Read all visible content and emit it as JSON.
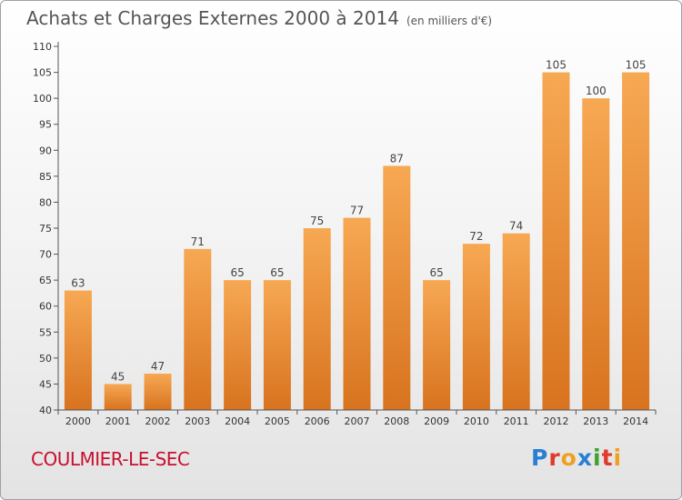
{
  "title": "Achats et Charges Externes 2000 à 2014",
  "unit": "(en milliers d'€)",
  "commune": "COULMIER-LE-SEC",
  "logo": {
    "letters": [
      {
        "ch": "P",
        "color": "#2a7fd4"
      },
      {
        "ch": "r",
        "color": "#e03a2b"
      },
      {
        "ch": "o",
        "color": "#f0a020"
      },
      {
        "ch": "x",
        "color": "#2a7fd4"
      },
      {
        "ch": "i",
        "color": "#40a030"
      },
      {
        "ch": "t",
        "color": "#e03a2b"
      },
      {
        "ch": "i",
        "color": "#f0a020"
      }
    ]
  },
  "colors": {
    "bar_top": "#f7a853",
    "bar_bottom": "#d8731f",
    "axis": "#555555",
    "grid": "#dddddd"
  },
  "chart_data": {
    "type": "bar",
    "title": "Achats et Charges Externes 2000 à 2014",
    "subtitle": "(en milliers d'€)",
    "categories": [
      "2000",
      "2001",
      "2002",
      "2003",
      "2004",
      "2005",
      "2006",
      "2007",
      "2008",
      "2009",
      "2010",
      "2011",
      "2012",
      "2013",
      "2014"
    ],
    "values": [
      63,
      45,
      47,
      71,
      65,
      65,
      75,
      77,
      87,
      65,
      72,
      74,
      105,
      100,
      105
    ],
    "ylim": [
      40,
      110
    ],
    "yticks": [
      40,
      45,
      50,
      55,
      60,
      65,
      70,
      75,
      80,
      85,
      90,
      95,
      100,
      105,
      110
    ],
    "grid": false,
    "data_labels": true
  }
}
